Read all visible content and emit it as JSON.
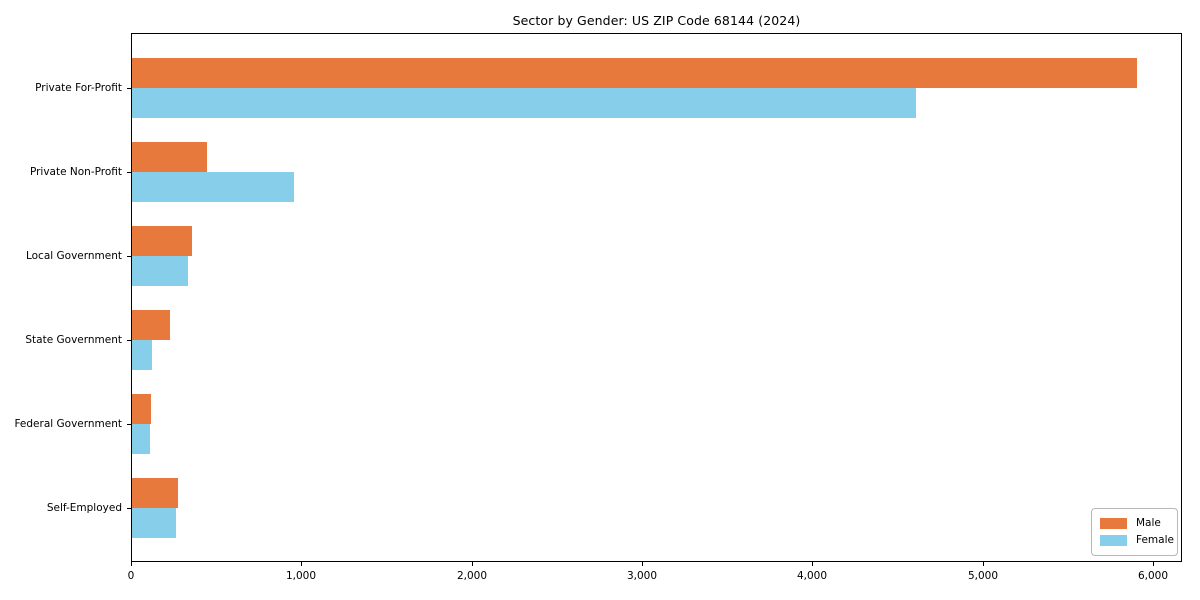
{
  "figure": {
    "background": "#ffffff",
    "axis_color": "#000000"
  },
  "chart_data": {
    "type": "bar",
    "orientation": "horizontal",
    "title": "Sector by Gender: US ZIP Code 68144 (2024)",
    "xlabel": "",
    "ylabel": "",
    "grid": false,
    "categories": [
      "Private For-Profit",
      "Private Non-Profit",
      "Local Government",
      "State Government",
      "Federal Government",
      "Self-Employed"
    ],
    "series": [
      {
        "name": "Male",
        "color": "#e8793c",
        "values": [
          5900,
          440,
          350,
          225,
          110,
          270
        ]
      },
      {
        "name": "Female",
        "color": "#87ceeb",
        "values": [
          4600,
          950,
          330,
          120,
          105,
          260
        ]
      }
    ],
    "xlim": [
      0,
      6170
    ],
    "xticks": [
      0,
      1000,
      2000,
      3000,
      4000,
      5000,
      6000
    ],
    "xtick_labels": [
      "0",
      "1,000",
      "2,000",
      "3,000",
      "4,000",
      "5,000",
      "6,000"
    ],
    "legend": {
      "position": "lower right",
      "entries": [
        "Male",
        "Female"
      ]
    }
  }
}
